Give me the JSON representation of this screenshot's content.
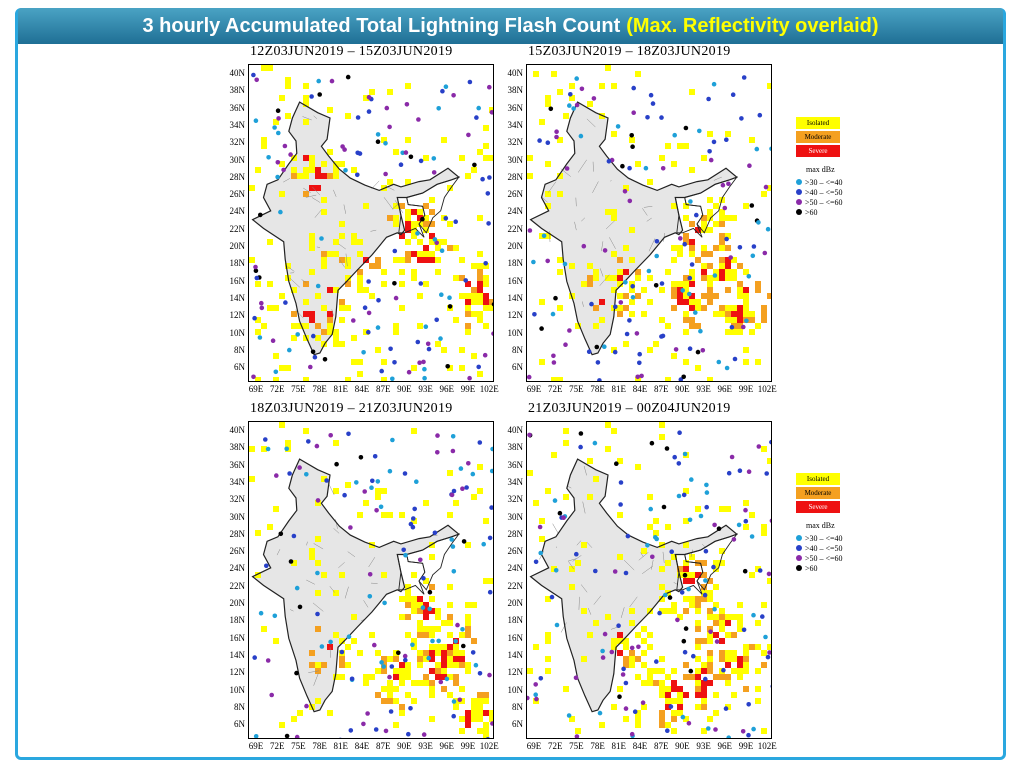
{
  "header": {
    "title_main": "3 hourly Accumulated Total Lightning Flash Count",
    "title_overlay": "(Max. Reflectivity overlaid)"
  },
  "colors": {
    "frame": "#2aa7df",
    "isolated": "#ffff00",
    "moderate": "#f4a020",
    "severe": "#ee1111",
    "dbz_30_40": "#1ea0d8",
    "dbz_40_50": "#2840c8",
    "dbz_50_60": "#8a2aa8",
    "dbz_60": "#000000",
    "boundary": "#222222",
    "district": "#888888"
  },
  "axes": {
    "lat_labels": [
      "40N",
      "38N",
      "36N",
      "34N",
      "32N",
      "30N",
      "28N",
      "26N",
      "24N",
      "22N",
      "20N",
      "18N",
      "16N",
      "14N",
      "12N",
      "10N",
      "8N",
      "6N"
    ],
    "lon_labels": [
      "69E",
      "72E",
      "75E",
      "78E",
      "81E",
      "84E",
      "87E",
      "90E",
      "93E",
      "96E",
      "99E",
      "102E"
    ]
  },
  "panels": [
    {
      "title": "12Z03JUN2019  –  15Z03JUN2019"
    },
    {
      "title": "15Z03JUN2019  –  18Z03JUN2019"
    },
    {
      "title": "18Z03JUN2019  –  21Z03JUN2019"
    },
    {
      "title": "21Z03JUN2019  –  00Z04JUN2019"
    }
  ],
  "legend": {
    "categories": [
      {
        "label": "Isolated",
        "color_key": "isolated"
      },
      {
        "label": "Moderate",
        "color_key": "moderate"
      },
      {
        "label": "Severe",
        "color_key": "severe"
      }
    ],
    "dbz_title": "max dBz",
    "dbz_items": [
      {
        "label": ">30  –  <=40",
        "color_key": "dbz_30_40"
      },
      {
        "label": ">40  –  <=50",
        "color_key": "dbz_40_50"
      },
      {
        "label": ">50  –  <=60",
        "color_key": "dbz_50_60"
      },
      {
        "label": ">60",
        "color_key": "dbz_60"
      }
    ]
  }
}
